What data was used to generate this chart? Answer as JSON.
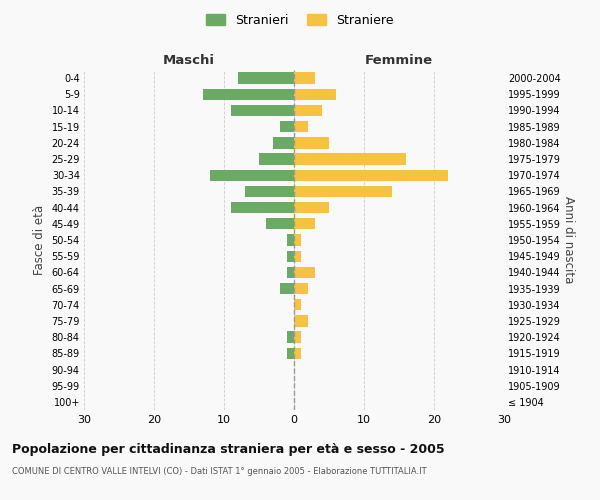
{
  "age_groups": [
    "100+",
    "95-99",
    "90-94",
    "85-89",
    "80-84",
    "75-79",
    "70-74",
    "65-69",
    "60-64",
    "55-59",
    "50-54",
    "45-49",
    "40-44",
    "35-39",
    "30-34",
    "25-29",
    "20-24",
    "15-19",
    "10-14",
    "5-9",
    "0-4"
  ],
  "birth_years": [
    "≤ 1904",
    "1905-1909",
    "1910-1914",
    "1915-1919",
    "1920-1924",
    "1925-1929",
    "1930-1934",
    "1935-1939",
    "1940-1944",
    "1945-1949",
    "1950-1954",
    "1955-1959",
    "1960-1964",
    "1965-1969",
    "1970-1974",
    "1975-1979",
    "1980-1984",
    "1985-1989",
    "1990-1994",
    "1995-1999",
    "2000-2004"
  ],
  "males": [
    0,
    0,
    0,
    1,
    1,
    0,
    0,
    2,
    1,
    1,
    1,
    4,
    9,
    7,
    12,
    5,
    3,
    2,
    9,
    13,
    8
  ],
  "females": [
    0,
    0,
    0,
    1,
    1,
    2,
    1,
    2,
    3,
    1,
    1,
    3,
    5,
    14,
    22,
    16,
    5,
    2,
    4,
    6,
    3
  ],
  "male_color": "#6aaa64",
  "female_color": "#f5c242",
  "background_color": "#f9f9f9",
  "grid_color": "#cccccc",
  "title": "Popolazione per cittadinanza straniera per età e sesso - 2005",
  "subtitle": "COMUNE DI CENTRO VALLE INTELVI (CO) - Dati ISTAT 1° gennaio 2005 - Elaborazione TUTTITALIA.IT",
  "xlabel_left": "Maschi",
  "xlabel_right": "Femmine",
  "ylabel_left": "Fasce di età",
  "ylabel_right": "Anni di nascita",
  "legend_male": "Stranieri",
  "legend_female": "Straniere",
  "xlim": 30,
  "bar_height": 0.7
}
